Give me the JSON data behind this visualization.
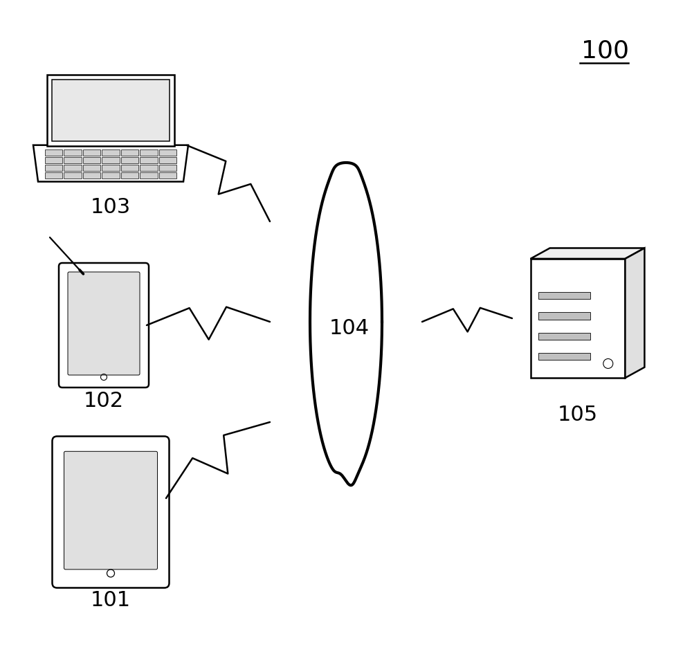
{
  "background_color": "#ffffff",
  "label_100": "100",
  "label_101": "101",
  "label_102": "102",
  "label_103": "103",
  "label_104": "104",
  "label_105": "105",
  "figsize": [
    10.0,
    9.35
  ],
  "dpi": 100
}
